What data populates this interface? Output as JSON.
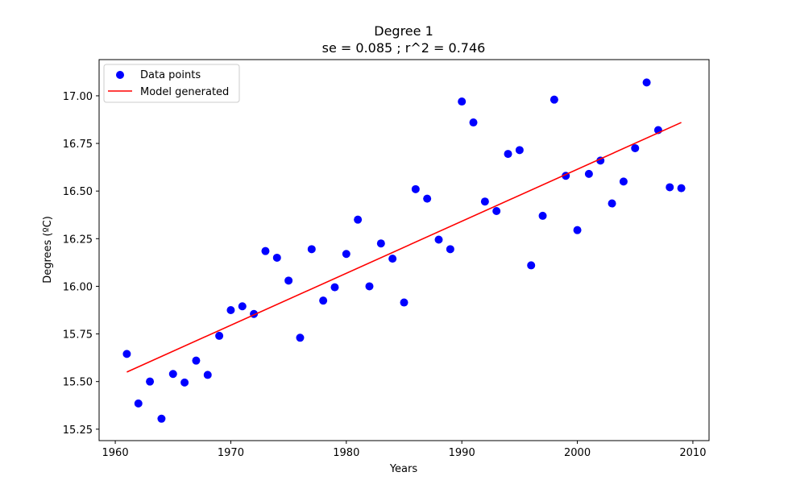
{
  "chart_data": {
    "type": "scatter",
    "title_line1": "Degree 1",
    "title_line2": "se = 0.085 ; r^2 = 0.746",
    "xlabel": "Years",
    "ylabel": "Degrees (ºC)",
    "xlim": [
      1958.6,
      2011.4
    ],
    "ylim": [
      15.19,
      17.19
    ],
    "xticks": [
      1960,
      1970,
      1980,
      1990,
      2000,
      2010
    ],
    "yticks": [
      15.25,
      15.5,
      15.75,
      16.0,
      16.25,
      16.5,
      16.75,
      17.0
    ],
    "ytick_labels": [
      "15.25",
      "15.50",
      "15.75",
      "16.00",
      "16.25",
      "16.50",
      "16.75",
      "17.00"
    ],
    "grid": false,
    "legend_position": "top-left",
    "series": [
      {
        "name": "Data points",
        "kind": "scatter",
        "color": "#0000ff",
        "x": [
          1961,
          1962,
          1963,
          1964,
          1965,
          1966,
          1967,
          1968,
          1969,
          1970,
          1971,
          1972,
          1973,
          1974,
          1975,
          1976,
          1977,
          1978,
          1979,
          1980,
          1981,
          1982,
          1983,
          1984,
          1985,
          1986,
          1987,
          1988,
          1989,
          1990,
          1991,
          1992,
          1993,
          1994,
          1995,
          1996,
          1997,
          1998,
          1999,
          2000,
          2001,
          2002,
          2003,
          2004,
          2005,
          2006,
          2007,
          2008,
          2009
        ],
        "y": [
          15.645,
          15.385,
          15.5,
          15.305,
          15.54,
          15.495,
          15.61,
          15.535,
          15.74,
          15.875,
          15.895,
          15.855,
          16.185,
          16.15,
          16.03,
          15.73,
          16.195,
          15.925,
          15.995,
          16.17,
          16.35,
          16.0,
          16.225,
          16.145,
          15.915,
          16.51,
          16.46,
          16.245,
          16.195,
          16.97,
          16.86,
          16.445,
          16.395,
          16.695,
          16.715,
          16.11,
          16.37,
          16.98,
          16.58,
          16.295,
          16.59,
          16.66,
          16.435,
          16.55,
          16.725,
          17.07,
          16.82,
          16.52,
          16.515
        ]
      },
      {
        "name": "Model generated",
        "kind": "line",
        "color": "#ff0000",
        "x": [
          1961,
          2009
        ],
        "y": [
          15.55,
          16.86
        ]
      }
    ]
  }
}
